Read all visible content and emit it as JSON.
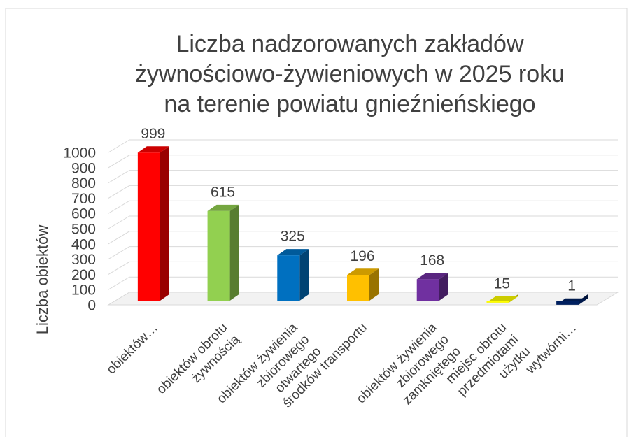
{
  "chart_data": {
    "type": "bar3d",
    "title": "Liczba nadzorowanych zakładów\nżywnościowo-żywieniowych  w 2025 roku\nna terenie powiatu gnieźnieńskiego",
    "y_label": "Liczba obiektów",
    "categories": [
      "obiektów…",
      "obiektów obrotu\nżywnością",
      "obiektów żywienia\nzbiorowego\notwartego",
      "środków transportu",
      "obiektów żywienia\nzbiorowego\nzamkniętego",
      "miejsc obrotu\nprzedmiotami\nużytku",
      "wytwórni…"
    ],
    "values": [
      999,
      615,
      325,
      196,
      168,
      15,
      1
    ],
    "colors": [
      "#ff0000",
      "#92d050",
      "#0070c0",
      "#ffc000",
      "#7030a0",
      "#ffff00",
      "#002060"
    ],
    "ylim": [
      0,
      1000
    ],
    "yticks": [
      0,
      100,
      200,
      300,
      400,
      500,
      600,
      700,
      800,
      900,
      1000
    ],
    "grid": true
  }
}
